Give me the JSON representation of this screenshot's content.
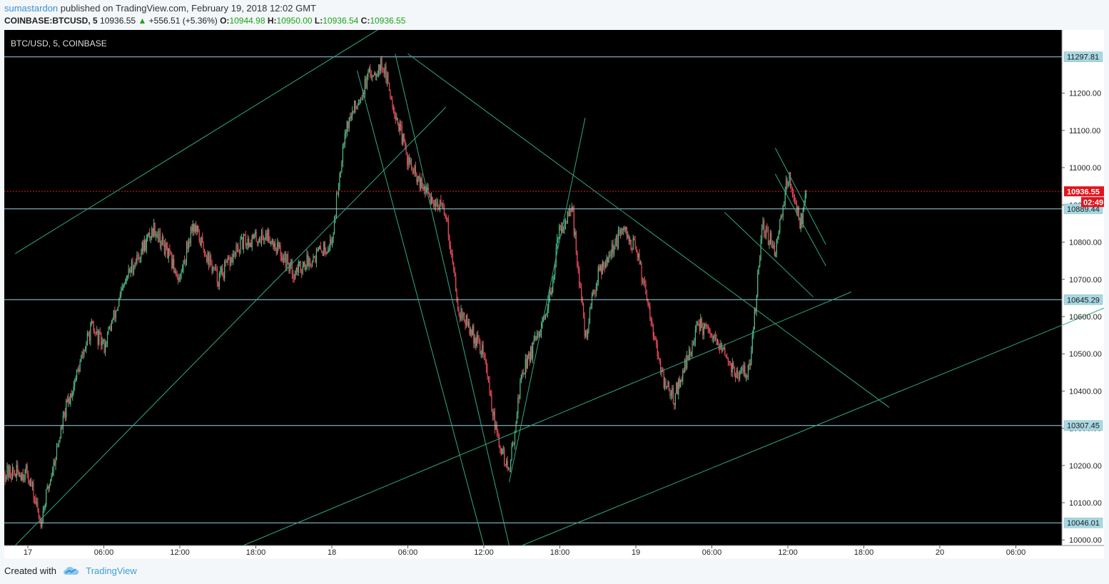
{
  "header": {
    "author": "sumastardon",
    "published_text": "published on TradingView.com, February 19, 2018 12:02 GMT",
    "symbol": "COINBASE:BTCUSD, 5",
    "last": "10936.55",
    "change": "+556.51 (+5.36%)",
    "o_label": "O:",
    "o_value": "10944.98",
    "h_label": "H:",
    "h_value": "10950.00",
    "l_label": "L:",
    "l_value": "10936.54",
    "c_label": "C:",
    "c_value": "10936.55"
  },
  "footer": {
    "created_with": "Created with",
    "brand": "TradingView"
  },
  "colors": {
    "background": "#000000",
    "up": "#53b987",
    "down": "#eb4d5c",
    "trendline": "#2fa986",
    "hline": "#9ed6e0",
    "current_price": "#e2131d"
  },
  "chart_data": {
    "type": "candlestick",
    "title": "BTC/USD, 5, COINBASE",
    "ylim": [
      9985,
      11370
    ],
    "y_ticks": [
      "11200.00",
      "11100.00",
      "11000.00",
      "10900.00",
      "10800.00",
      "10700.00",
      "10600.00",
      "10500.00",
      "10400.00",
      "10300.00",
      "10200.00",
      "10100.00",
      "10000.00"
    ],
    "x_ticks": [
      "17",
      "06:00",
      "12:00",
      "18:00",
      "18",
      "06:00",
      "12:00",
      "18:00",
      "19",
      "06:00",
      "12:00",
      "18:00",
      "20",
      "06:00"
    ],
    "horizontal_lines": [
      {
        "price": 11297.81,
        "label": "11297.81"
      },
      {
        "price": 10889.44,
        "label": "10889.44"
      },
      {
        "price": 10645.29,
        "label": "10645.29"
      },
      {
        "price": 10307.45,
        "label": "10307.45"
      },
      {
        "price": 10046.01,
        "label": "10046.01"
      }
    ],
    "current_price": {
      "price": 10936.55,
      "label": "10936.55",
      "countdown": "02:49"
    },
    "price_path_anchors": [
      [
        "17",
        10180
      ],
      [
        "17 01:00",
        10050
      ],
      [
        "17 03:00",
        10350
      ],
      [
        "17 05:00",
        10570
      ],
      [
        "17 06:00",
        10520
      ],
      [
        "17 08:00",
        10720
      ],
      [
        "17 10:00",
        10840
      ],
      [
        "17 12:00",
        10700
      ],
      [
        "17 13:00",
        10850
      ],
      [
        "17 15:00",
        10700
      ],
      [
        "17 17:00",
        10800
      ],
      [
        "17 19:00",
        10820
      ],
      [
        "17 21:00",
        10720
      ],
      [
        "18 00:00",
        10800
      ],
      [
        "18 01:00",
        11100
      ],
      [
        "18 03:00",
        11250
      ],
      [
        "18 04:00",
        11280
      ],
      [
        "18 06:00",
        11020
      ],
      [
        "18 07:00",
        10950
      ],
      [
        "18 09:00",
        10880
      ],
      [
        "18 10:00",
        10620
      ],
      [
        "18 12:00",
        10500
      ],
      [
        "18 13:00",
        10280
      ],
      [
        "18 14:00",
        10180
      ],
      [
        "18 15:00",
        10450
      ],
      [
        "18 17:00",
        10600
      ],
      [
        "18 18:00",
        10840
      ],
      [
        "18 19:00",
        10880
      ],
      [
        "18 20:00",
        10540
      ],
      [
        "18 21:00",
        10720
      ],
      [
        "18 23:00",
        10830
      ],
      [
        "19 00:00",
        10780
      ],
      [
        "19 01:00",
        10640
      ],
      [
        "19 02:00",
        10440
      ],
      [
        "19 03:00",
        10380
      ],
      [
        "19 05:00",
        10580
      ],
      [
        "19 07:00",
        10500
      ],
      [
        "19 08:00",
        10440
      ],
      [
        "19 09:00",
        10460
      ],
      [
        "19 10:00",
        10840
      ],
      [
        "19 11:00",
        10780
      ],
      [
        "19 12:00",
        10980
      ],
      [
        "19 12:30",
        10920
      ],
      [
        "19 13:00",
        10850
      ],
      [
        "19 13:30",
        10936
      ]
    ],
    "trendlines": [
      {
        "from": [
          "16 23:00",
          10769
        ],
        "to": [
          "18 04:00",
          11378
        ]
      },
      {
        "from": [
          "16 23:00",
          9985
        ],
        "to": [
          "18 09:00",
          11163
        ]
      },
      {
        "from": [
          "17 17:00",
          9985
        ],
        "to": [
          "19 17:00",
          10666
        ]
      },
      {
        "from": [
          "18 02:00",
          11261
        ],
        "to": [
          "18 12:00",
          9985
        ]
      },
      {
        "from": [
          "18 06:00",
          11306
        ],
        "to": [
          "19 20:00",
          10356
        ]
      },
      {
        "from": [
          "18 05:00",
          11306
        ],
        "to": [
          "18 14:00",
          9985
        ]
      },
      {
        "from": [
          "18 14:00",
          10155
        ],
        "to": [
          "18 20:00",
          11134
        ]
      },
      {
        "from": [
          "18 15:00",
          9985
        ],
        "to": [
          "20 16:00",
          10665
        ]
      },
      {
        "from": [
          "19 07:00",
          10880
        ],
        "to": [
          "19 14:00",
          10653
        ]
      },
      {
        "from": [
          "19 11:00",
          10983
        ],
        "to": [
          "19 15:00",
          10736
        ]
      },
      {
        "from": [
          "19 11:00",
          11053
        ],
        "to": [
          "19 15:00",
          10793
        ]
      }
    ]
  }
}
